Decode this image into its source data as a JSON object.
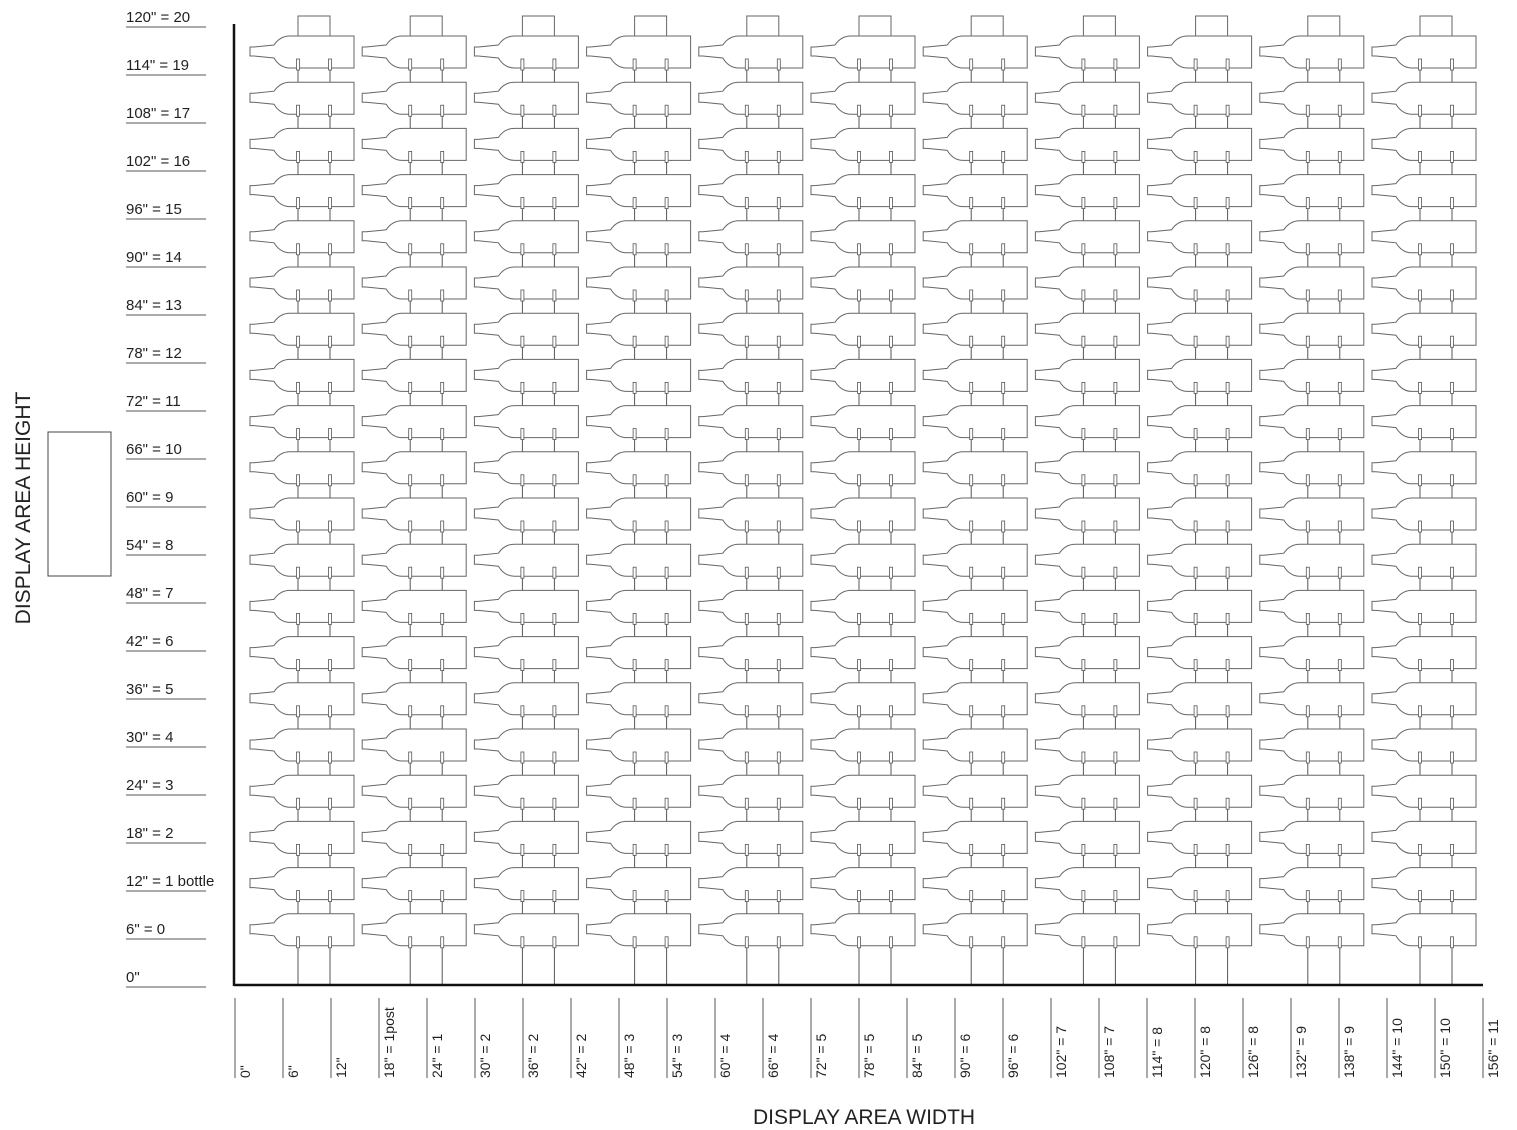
{
  "diagram": {
    "y_axis_title": "DISPLAY AREA HEIGHT",
    "x_axis_title": "DISPLAY AREA WIDTH",
    "y_labels": [
      "120\" = 20",
      "114\" = 19",
      "108\" = 17",
      "102\" = 16",
      "96\" = 15",
      "90\" = 14",
      "84\" = 13",
      "78\" = 12",
      "72\" = 11",
      "66\" = 10",
      "60\" = 9",
      "54\" = 8",
      "48\" = 7",
      "42\" = 6",
      "36\" = 5",
      "30\" = 4",
      "24\" = 3",
      "18\" = 2",
      "12\" = 1 bottle",
      "6\" = 0",
      "0\""
    ],
    "x_labels": [
      "0\"",
      "6\"",
      "12\"",
      "18\" = 1post",
      "24\" = 1",
      "30\" = 2",
      "36\" = 2",
      "42\" = 2",
      "48\" = 3",
      "54\" = 3",
      "60\" = 4",
      "66\" = 4",
      "72\" = 5",
      "78\" = 5",
      "84\" = 5",
      "90\" = 6",
      "96\" = 6",
      "102\" = 7",
      "108\" = 7",
      "114\" = 8",
      "120\" = 8",
      "126\" = 8",
      "132\" = 9",
      "138\" = 9",
      "144\" = 10",
      "150\" = 10",
      "156\" = 11"
    ],
    "post_columns": 11,
    "bottle_rows": 20,
    "colors": {
      "line": "#555555",
      "bottle": "#666666",
      "axis": "#111111"
    }
  }
}
